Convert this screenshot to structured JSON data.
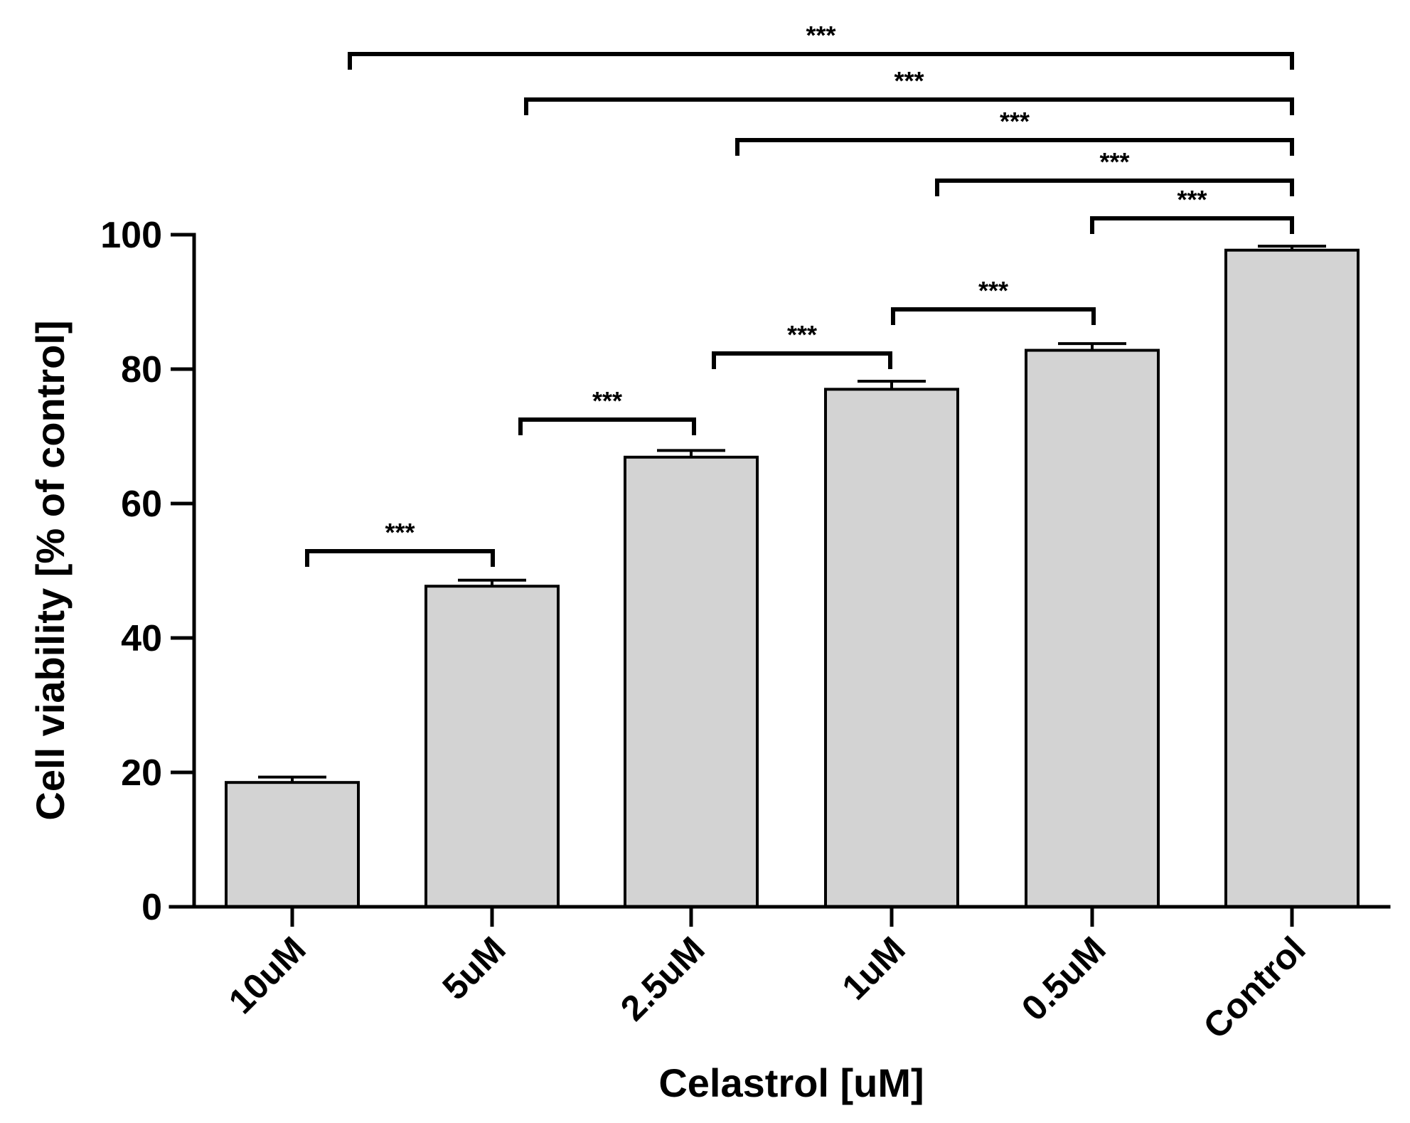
{
  "chart_data": {
    "type": "bar",
    "title": "",
    "xlabel": "Celastrol [uM]",
    "ylabel": "Cell viability [% of control]",
    "ylim": [
      0,
      100
    ],
    "yticks": [
      0,
      20,
      40,
      60,
      80,
      100
    ],
    "categories": [
      "10uM",
      "5uM",
      "2.5uM",
      "1uM",
      "0.5uM",
      "Control"
    ],
    "values": [
      18.5,
      47.7,
      66.9,
      77.0,
      82.8,
      97.7
    ],
    "errors": [
      0.8,
      0.9,
      1.0,
      1.2,
      1.0,
      0.6
    ],
    "significance": [
      {
        "from": "10uM",
        "to": "5uM",
        "label": "***"
      },
      {
        "from": "5uM",
        "to": "2.5uM",
        "label": "***"
      },
      {
        "from": "2.5uM",
        "to": "1uM",
        "label": "***"
      },
      {
        "from": "1uM",
        "to": "0.5uM",
        "label": "***"
      },
      {
        "from": "0.5uM",
        "to": "Control",
        "label": "***"
      },
      {
        "from": "1uM",
        "to": "Control",
        "label": "***"
      },
      {
        "from": "2.5uM",
        "to": "Control",
        "label": "***"
      },
      {
        "from": "5uM",
        "to": "Control",
        "label": "***"
      },
      {
        "from": "10uM",
        "to": "Control",
        "label": "***"
      }
    ],
    "grid": false,
    "colors": {
      "bar_fill": "#d3d3d3",
      "stroke": "#000000"
    }
  }
}
